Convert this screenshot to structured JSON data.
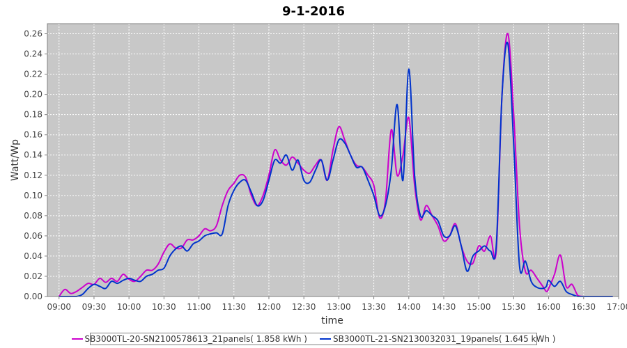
{
  "chart_data": {
    "type": "line",
    "title": "9-1-2016",
    "xlabel": "time",
    "ylabel": "Watt/Wp",
    "xlim": [
      "08:50",
      "17:00"
    ],
    "ylim": [
      0,
      0.27
    ],
    "x_ticks": [
      "09:00",
      "09:30",
      "10:00",
      "10:30",
      "11:00",
      "11:30",
      "12:00",
      "12:30",
      "13:00",
      "13:30",
      "14:00",
      "14:30",
      "15:00",
      "15:30",
      "16:00",
      "16:30",
      "17:00"
    ],
    "y_ticks": [
      "0.00",
      "0.02",
      "0.04",
      "0.06",
      "0.08",
      "0.10",
      "0.12",
      "0.14",
      "0.16",
      "0.18",
      "0.20",
      "0.22",
      "0.24",
      "0.26"
    ],
    "grid": true,
    "legend_position": "bottom",
    "series": [
      {
        "name": "SB3000TL-20-SN2100578613_21panels( 1.858 kWh )",
        "color": "#cc00cc",
        "x": [
          "09:00",
          "09:05",
          "09:10",
          "09:15",
          "09:20",
          "09:25",
          "09:30",
          "09:35",
          "09:40",
          "09:45",
          "09:50",
          "09:55",
          "10:00",
          "10:05",
          "10:10",
          "10:15",
          "10:20",
          "10:25",
          "10:30",
          "10:35",
          "10:40",
          "10:45",
          "10:50",
          "10:55",
          "11:00",
          "11:05",
          "11:10",
          "11:15",
          "11:20",
          "11:25",
          "11:30",
          "11:35",
          "11:40",
          "11:45",
          "11:50",
          "11:55",
          "12:00",
          "12:05",
          "12:10",
          "12:15",
          "12:20",
          "12:25",
          "12:30",
          "12:35",
          "12:40",
          "12:45",
          "12:50",
          "12:55",
          "13:00",
          "13:05",
          "13:10",
          "13:15",
          "13:20",
          "13:25",
          "13:30",
          "13:35",
          "13:40",
          "13:45",
          "13:50",
          "13:55",
          "14:00",
          "14:05",
          "14:10",
          "14:15",
          "14:20",
          "14:25",
          "14:30",
          "14:35",
          "14:40",
          "14:45",
          "14:50",
          "14:55",
          "15:00",
          "15:05",
          "15:10",
          "15:15",
          "15:20",
          "15:25",
          "15:30",
          "15:35",
          "15:40",
          "15:45",
          "15:50",
          "15:55",
          "15:58",
          "16:00",
          "16:05",
          "16:10",
          "16:15",
          "16:20",
          "16:25",
          "16:30",
          "16:35",
          "16:40",
          "16:45",
          "16:50",
          "16:55"
        ],
        "values": [
          0.0,
          0.007,
          0.003,
          0.005,
          0.009,
          0.013,
          0.012,
          0.018,
          0.014,
          0.018,
          0.015,
          0.022,
          0.017,
          0.015,
          0.02,
          0.026,
          0.026,
          0.032,
          0.044,
          0.052,
          0.048,
          0.048,
          0.056,
          0.056,
          0.06,
          0.067,
          0.065,
          0.07,
          0.09,
          0.105,
          0.112,
          0.12,
          0.118,
          0.1,
          0.09,
          0.1,
          0.12,
          0.145,
          0.135,
          0.13,
          0.138,
          0.132,
          0.125,
          0.122,
          0.13,
          0.135,
          0.115,
          0.145,
          0.168,
          0.155,
          0.14,
          0.13,
          0.128,
          0.12,
          0.11,
          0.078,
          0.095,
          0.165,
          0.12,
          0.14,
          0.177,
          0.11,
          0.076,
          0.09,
          0.08,
          0.07,
          0.055,
          0.06,
          0.072,
          0.05,
          0.035,
          0.033,
          0.05,
          0.045,
          0.06,
          0.045,
          0.2,
          0.26,
          0.18,
          0.07,
          0.025,
          0.026,
          0.018,
          0.01,
          0.005,
          0.008,
          0.022,
          0.041,
          0.01,
          0.012,
          0.001,
          0.0,
          0.0,
          0.0,
          0.0,
          0.0,
          0.0
        ]
      },
      {
        "name": "SB3000TL-21-SN2130032031_19panels( 1.645 kWh )",
        "color": "#0033cc",
        "x": [
          "09:00",
          "09:05",
          "09:10",
          "09:15",
          "09:20",
          "09:25",
          "09:30",
          "09:35",
          "09:40",
          "09:45",
          "09:50",
          "09:55",
          "10:00",
          "10:05",
          "10:10",
          "10:15",
          "10:20",
          "10:25",
          "10:30",
          "10:35",
          "10:40",
          "10:45",
          "10:50",
          "10:55",
          "11:00",
          "11:05",
          "11:10",
          "11:15",
          "11:20",
          "11:25",
          "11:30",
          "11:35",
          "11:40",
          "11:45",
          "11:50",
          "11:55",
          "12:00",
          "12:05",
          "12:10",
          "12:15",
          "12:20",
          "12:25",
          "12:30",
          "12:35",
          "12:40",
          "12:45",
          "12:50",
          "12:55",
          "13:00",
          "13:05",
          "13:10",
          "13:15",
          "13:20",
          "13:25",
          "13:30",
          "13:35",
          "13:40",
          "13:45",
          "13:50",
          "13:55",
          "14:00",
          "14:05",
          "14:10",
          "14:15",
          "14:20",
          "14:25",
          "14:30",
          "14:35",
          "14:40",
          "14:45",
          "14:50",
          "14:55",
          "15:00",
          "15:05",
          "15:10",
          "15:15",
          "15:20",
          "15:25",
          "15:30",
          "15:35",
          "15:40",
          "15:45",
          "15:50",
          "15:55",
          "15:58",
          "16:00",
          "16:05",
          "16:10",
          "16:15",
          "16:20",
          "16:25",
          "16:30",
          "16:35",
          "16:40",
          "16:45",
          "16:50",
          "16:55"
        ],
        "values": [
          0.0,
          0.0,
          0.0,
          0.0,
          0.002,
          0.008,
          0.012,
          0.01,
          0.008,
          0.015,
          0.013,
          0.016,
          0.018,
          0.016,
          0.015,
          0.02,
          0.022,
          0.026,
          0.028,
          0.04,
          0.047,
          0.05,
          0.045,
          0.052,
          0.055,
          0.06,
          0.062,
          0.063,
          0.062,
          0.09,
          0.105,
          0.113,
          0.115,
          0.103,
          0.09,
          0.095,
          0.115,
          0.135,
          0.132,
          0.14,
          0.125,
          0.135,
          0.115,
          0.113,
          0.125,
          0.135,
          0.115,
          0.135,
          0.155,
          0.152,
          0.14,
          0.128,
          0.128,
          0.115,
          0.1,
          0.08,
          0.09,
          0.125,
          0.19,
          0.115,
          0.225,
          0.12,
          0.08,
          0.085,
          0.08,
          0.075,
          0.06,
          0.06,
          0.07,
          0.05,
          0.025,
          0.04,
          0.045,
          0.05,
          0.045,
          0.05,
          0.2,
          0.25,
          0.15,
          0.03,
          0.035,
          0.015,
          0.009,
          0.008,
          0.01,
          0.016,
          0.01,
          0.015,
          0.005,
          0.002,
          0.0,
          0.0,
          0.0,
          0.0,
          0.0,
          0.0,
          0.0
        ]
      }
    ]
  }
}
